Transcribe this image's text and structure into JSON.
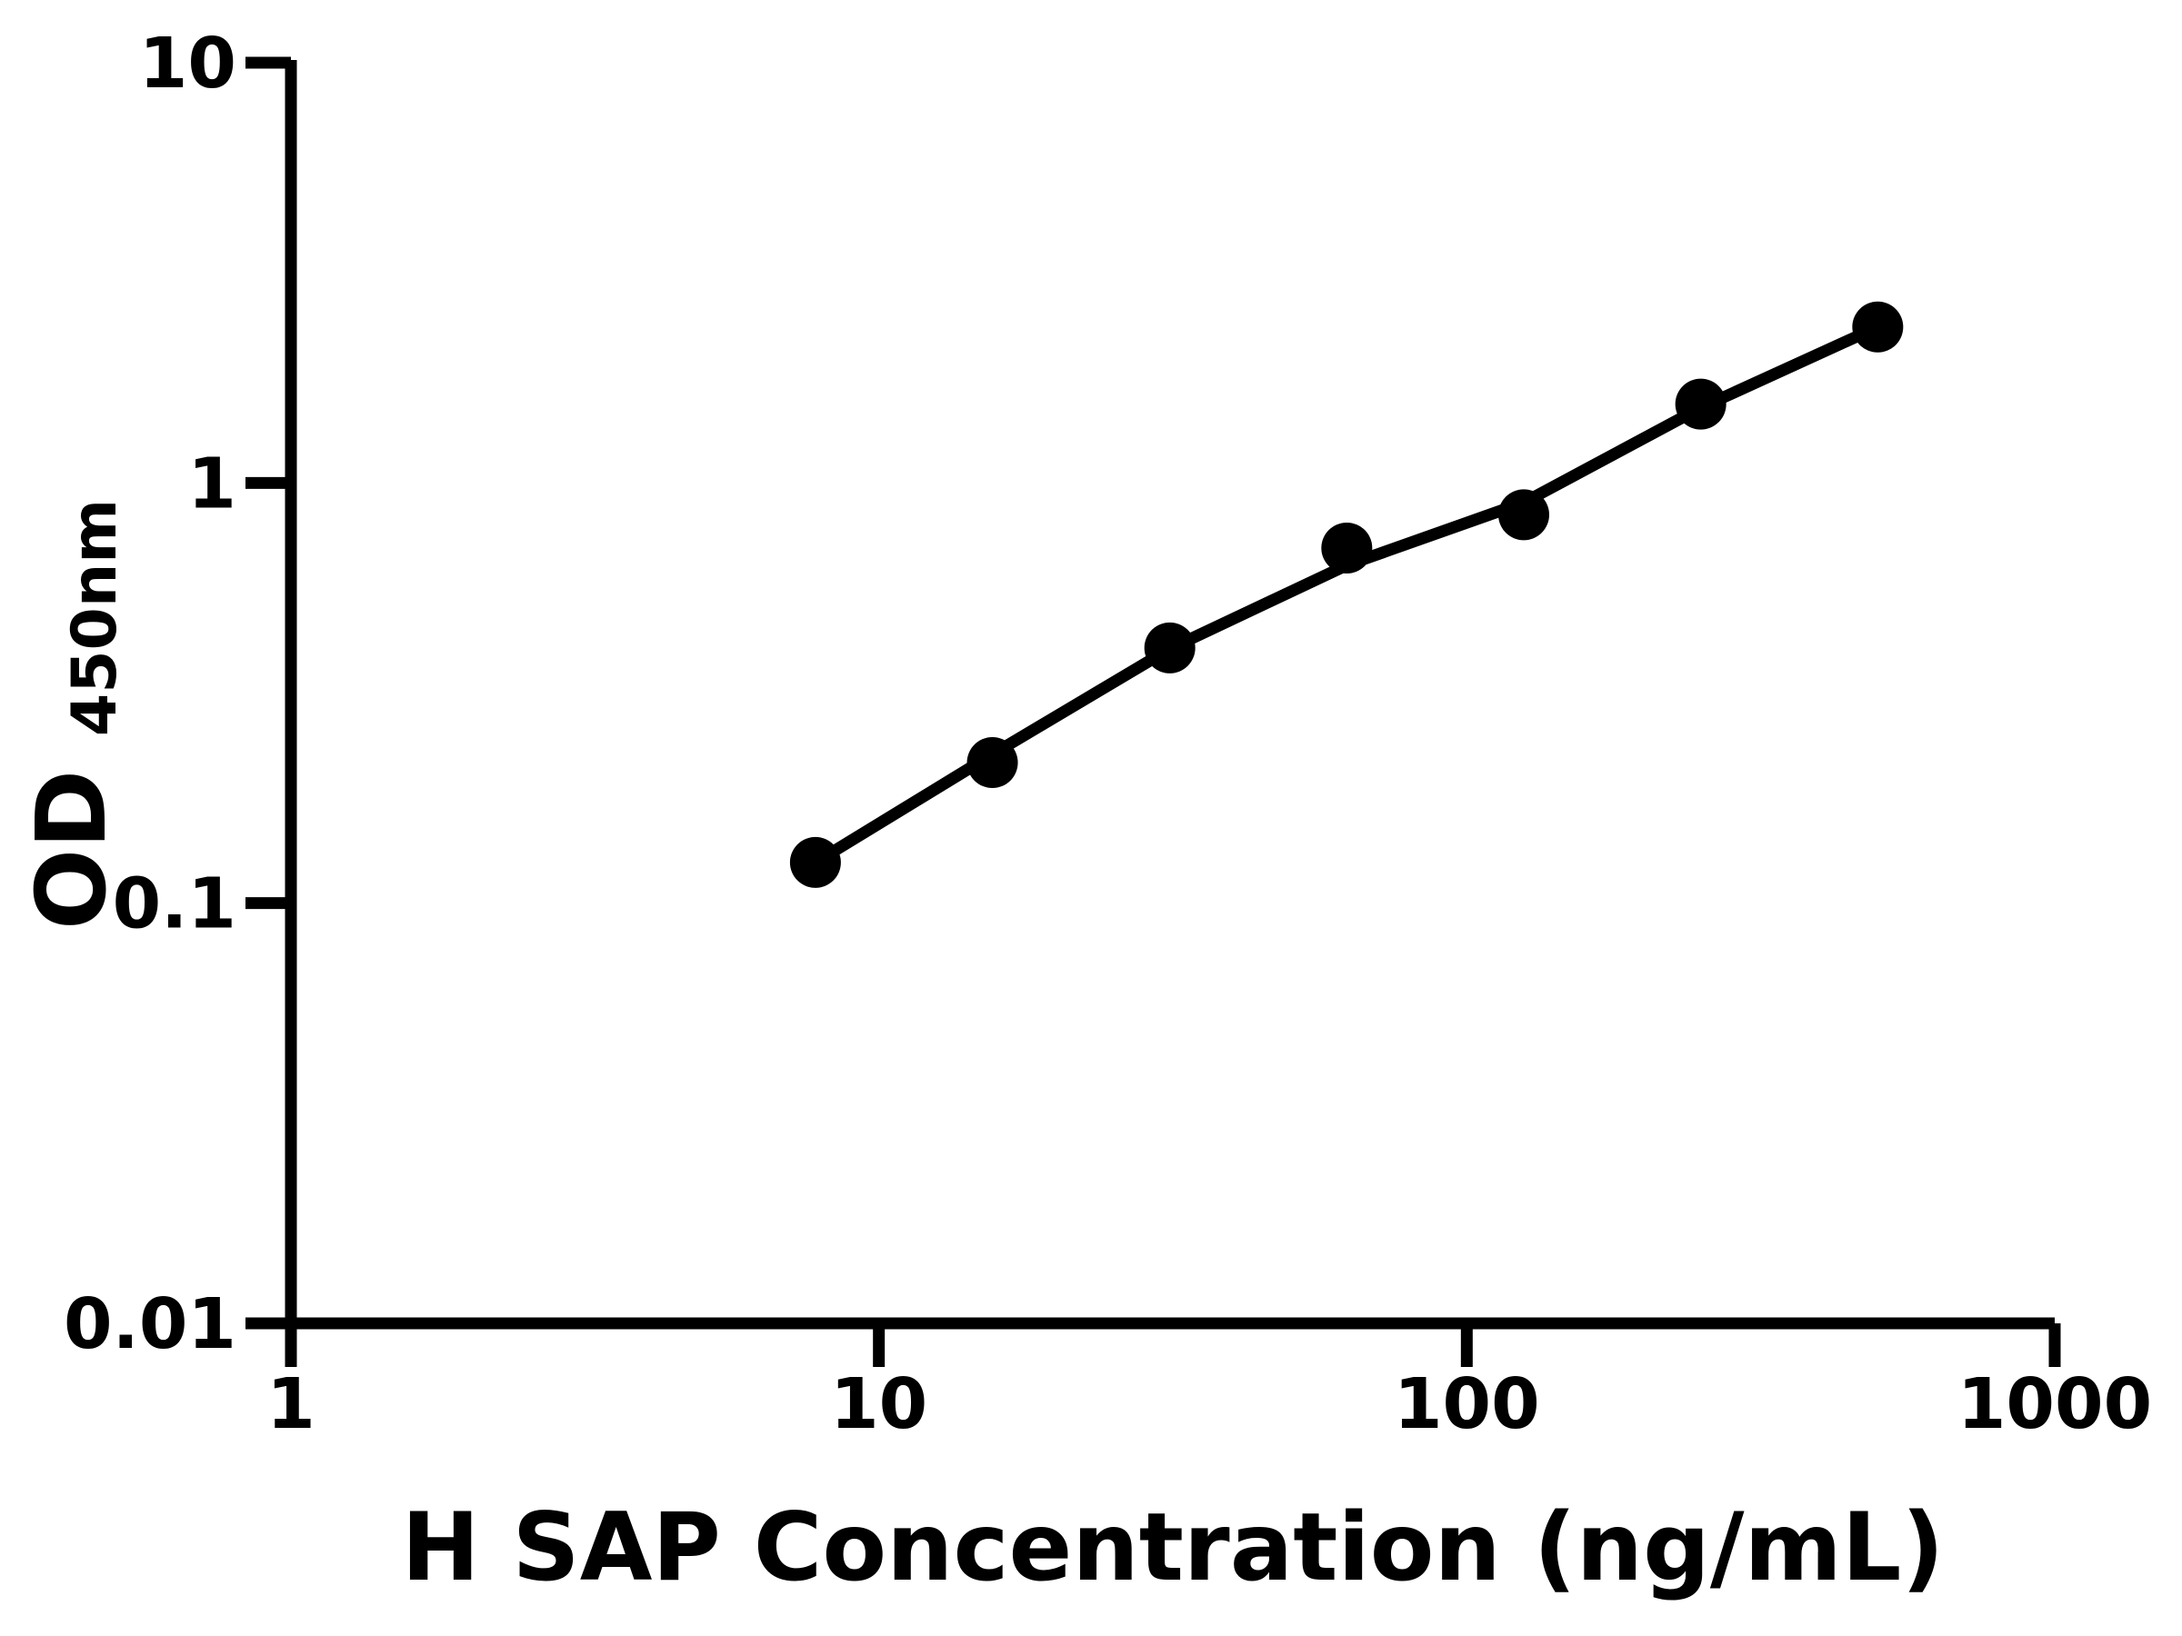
{
  "chart_data": {
    "type": "scatter",
    "title": "",
    "xlabel": "H SAP Concentration (ng/mL)",
    "ylabel": "OD",
    "ylabel_subscript": "450nm",
    "x_scale": "log",
    "y_scale": "log",
    "xlim": [
      1,
      1000
    ],
    "ylim": [
      0.01,
      10
    ],
    "x_ticks": [
      {
        "value": 1,
        "label": "1"
      },
      {
        "value": 10,
        "label": "10"
      },
      {
        "value": 100,
        "label": "100"
      },
      {
        "value": 1000,
        "label": "1000"
      }
    ],
    "y_ticks": [
      {
        "value": 10,
        "label": "10"
      },
      {
        "value": 1,
        "label": "1"
      },
      {
        "value": 0.1,
        "label": "0.1"
      },
      {
        "value": 0.01,
        "label": "0.01"
      }
    ],
    "grid": false,
    "legend": null,
    "series": [
      {
        "name": "standard-points",
        "type": "scatter",
        "x": [
          7.8,
          15.6,
          31.25,
          62.5,
          125,
          250,
          500
        ],
        "y": [
          0.125,
          0.216,
          0.405,
          0.7,
          0.84,
          1.54,
          2.35
        ]
      },
      {
        "name": "fit-line",
        "type": "line",
        "x": [
          7.8,
          15.6,
          31.25,
          62.5,
          125,
          250,
          500
        ],
        "y": [
          0.125,
          0.226,
          0.403,
          0.637,
          0.898,
          1.51,
          2.35
        ]
      }
    ],
    "marker": {
      "shape": "circle",
      "radius_px": 28
    },
    "colors": {
      "points": "#000000",
      "line": "#000000",
      "axis": "#000000",
      "text": "#000000",
      "background": "#ffffff"
    }
  }
}
